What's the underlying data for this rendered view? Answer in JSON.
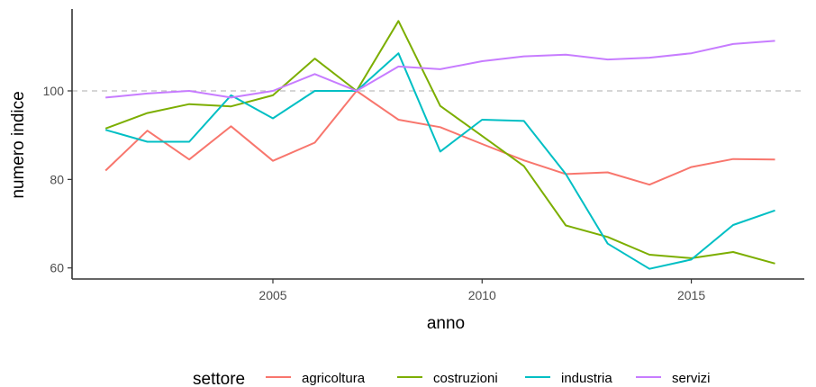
{
  "chart_data": {
    "type": "line",
    "xlabel": "anno",
    "ylabel": "numero indice",
    "xlim": [
      2000.2,
      2017.7
    ],
    "ylim": [
      57.5,
      118.5
    ],
    "x_ticks": [
      2005,
      2010,
      2015
    ],
    "x_tick_labels": [
      "2005",
      "2010",
      "2015"
    ],
    "y_ticks": [
      60,
      80,
      100
    ],
    "y_tick_labels": [
      "60",
      "80",
      "100"
    ],
    "reference_line": {
      "y": 100,
      "style": "dashed",
      "color": "#bdbdbd"
    },
    "grid": false,
    "legend": {
      "title": "settore",
      "position": "bottom"
    },
    "x": [
      2001,
      2002,
      2003,
      2004,
      2005,
      2006,
      2007,
      2008,
      2009,
      2010,
      2011,
      2012,
      2013,
      2014,
      2015,
      2016,
      2017
    ],
    "series": [
      {
        "name": "agricoltura",
        "color": "#F8766D",
        "values": [
          82.0,
          91.0,
          84.5,
          92.0,
          84.2,
          88.3,
          100.0,
          93.5,
          91.8,
          88.0,
          84.3,
          81.2,
          81.6,
          78.8,
          82.8,
          84.6,
          84.5
        ]
      },
      {
        "name": "costruzioni",
        "color": "#7CAE00",
        "values": [
          91.5,
          95.0,
          97.0,
          96.5,
          99.0,
          107.3,
          100.0,
          115.8,
          96.6,
          89.8,
          83.0,
          69.6,
          67.0,
          63.0,
          62.2,
          63.6,
          61.0
        ]
      },
      {
        "name": "industria",
        "color": "#00BFC4",
        "values": [
          91.2,
          88.5,
          88.5,
          99.0,
          93.8,
          100.0,
          100.0,
          108.5,
          86.3,
          93.5,
          93.2,
          81.2,
          65.5,
          59.8,
          61.9,
          69.7,
          73.0
        ]
      },
      {
        "name": "servizi",
        "color": "#C77CFF",
        "values": [
          98.5,
          99.4,
          100.0,
          98.5,
          100.0,
          103.8,
          100.0,
          105.5,
          104.9,
          106.7,
          107.8,
          108.2,
          107.1,
          107.5,
          108.5,
          110.6,
          111.3
        ]
      }
    ]
  }
}
